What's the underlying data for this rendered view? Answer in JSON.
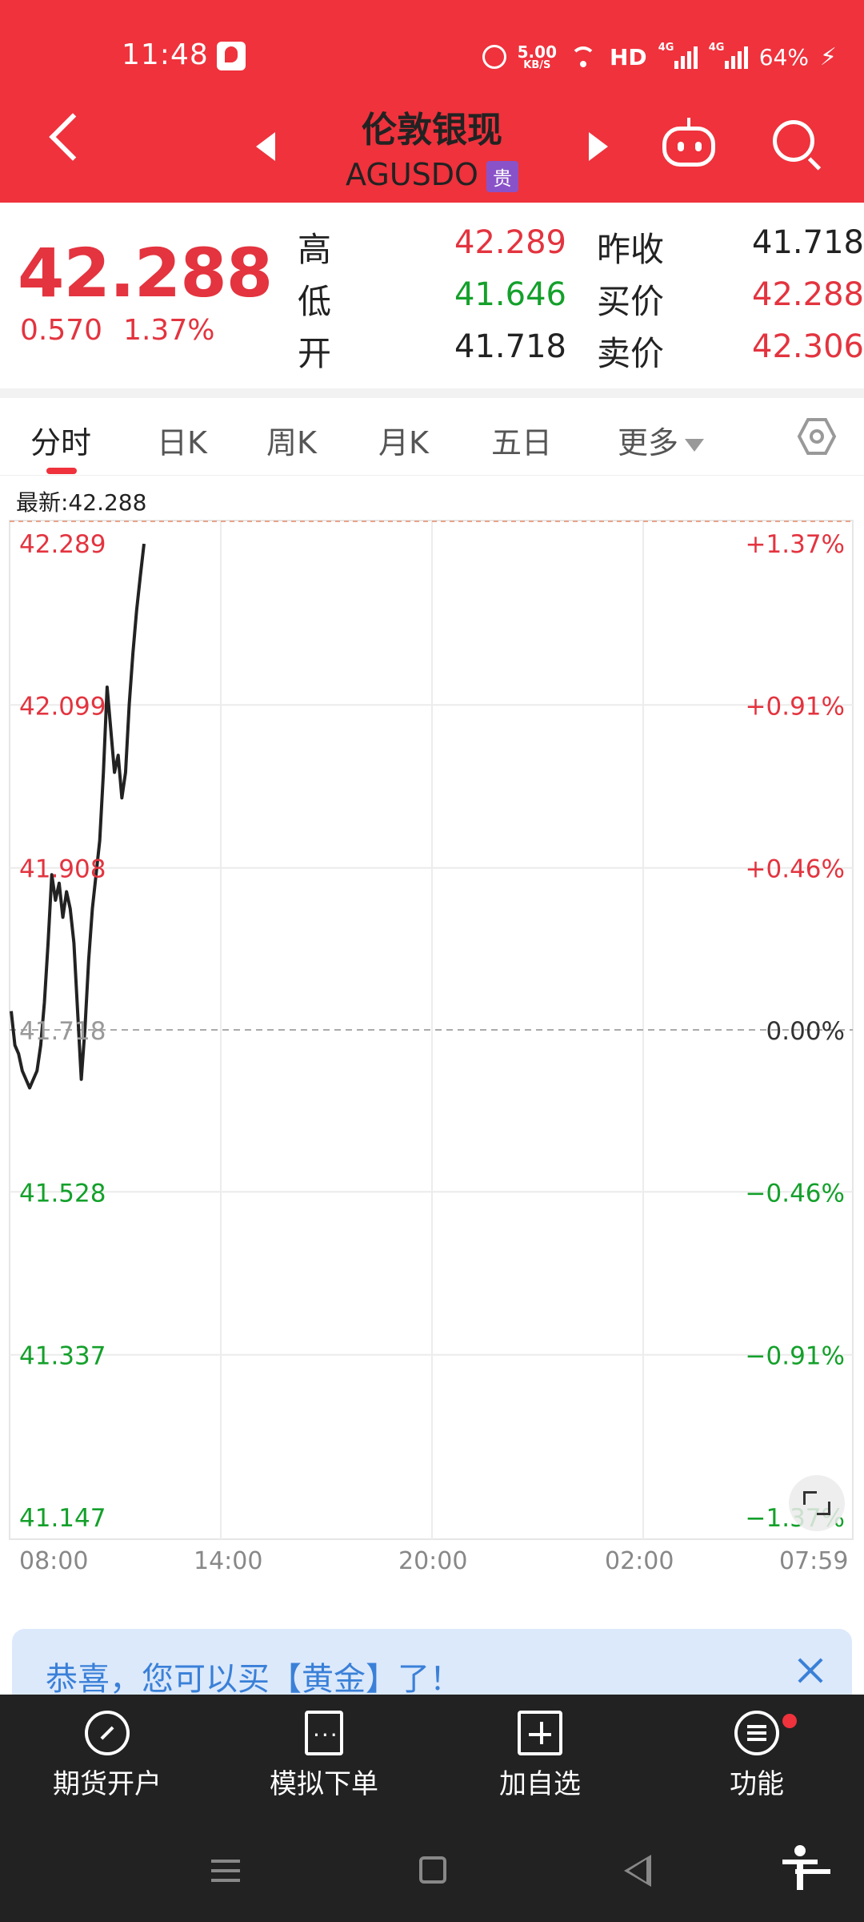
{
  "status_bar": {
    "time": "11:48",
    "net_speed": "5.00",
    "net_speed_unit": "KB/S",
    "hd": "HD",
    "net1": "4G",
    "net2": "4G",
    "battery": "64%"
  },
  "header": {
    "title": "伦敦银现",
    "code": "AGUSDO",
    "badge": "贵"
  },
  "quote": {
    "price": "42.288",
    "change": "0.570",
    "change_pct": "1.37%",
    "labels": {
      "high": "高",
      "low": "低",
      "open": "开",
      "prev_close": "昨收",
      "bid": "买价",
      "ask": "卖价"
    },
    "high": "42.289",
    "low": "41.646",
    "open": "41.718",
    "prev_close": "41.718",
    "bid": "42.288",
    "ask": "42.306"
  },
  "tabs": [
    {
      "label": "分时"
    },
    {
      "label": "日K"
    },
    {
      "label": "周K"
    },
    {
      "label": "月K"
    },
    {
      "label": "五日"
    },
    {
      "label": "更多"
    }
  ],
  "chart_data": {
    "type": "line",
    "latest_label": "最新:42.288",
    "y_ticks": [
      "42.289",
      "42.099",
      "41.908",
      "41.718",
      "41.528",
      "41.337",
      "41.147"
    ],
    "y_pct_ticks": [
      "+1.37%",
      "+0.91%",
      "+0.46%",
      "0.00%",
      "−0.46%",
      "−0.91%",
      "−1.37%"
    ],
    "ylim": [
      41.147,
      42.289
    ],
    "baseline": 41.718,
    "x_ticks": [
      "08:00",
      "14:00",
      "20:00",
      "02:00",
      "07:59"
    ],
    "series": [
      {
        "values": [
          41.74,
          41.7,
          41.69,
          41.67,
          41.66,
          41.65,
          41.66,
          41.67,
          41.7,
          41.75,
          41.82,
          41.9,
          41.87,
          41.89,
          41.85,
          41.88,
          41.86,
          41.82,
          41.74,
          41.66,
          41.72,
          41.8,
          41.86,
          41.9,
          41.94,
          42.02,
          42.12,
          42.07,
          42.02,
          42.04,
          41.99,
          42.02,
          42.1,
          42.16,
          42.21,
          42.25,
          42.288
        ]
      }
    ],
    "colors": {
      "up": "#e3343f",
      "down": "#14a02b",
      "line": "#222222"
    }
  },
  "promo": {
    "text": "恭喜，您可以买【黄金】了！"
  },
  "toolbar": [
    {
      "label": "期货开户",
      "icon": "futures-account-icon"
    },
    {
      "label": "模拟下单",
      "icon": "simulated-order-icon"
    },
    {
      "label": "加自选",
      "icon": "add-watchlist-icon"
    },
    {
      "label": "功能",
      "icon": "functions-menu-icon"
    }
  ]
}
